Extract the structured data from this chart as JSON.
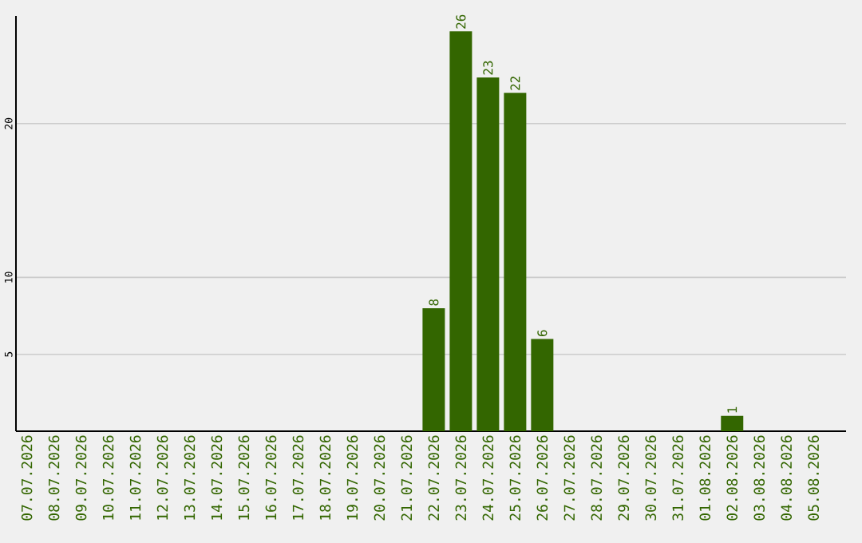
{
  "chart_data": {
    "type": "bar",
    "categories": [
      "07.07.2026",
      "08.07.2026",
      "09.07.2026",
      "10.07.2026",
      "11.07.2026",
      "12.07.2026",
      "13.07.2026",
      "14.07.2026",
      "15.07.2026",
      "16.07.2026",
      "17.07.2026",
      "18.07.2026",
      "19.07.2026",
      "20.07.2026",
      "21.07.2026",
      "22.07.2026",
      "23.07.2026",
      "24.07.2026",
      "25.07.2026",
      "26.07.2026",
      "27.07.2026",
      "28.07.2026",
      "29.07.2026",
      "30.07.2026",
      "31.07.2026",
      "01.08.2026",
      "02.08.2026",
      "03.08.2026",
      "04.08.2026",
      "05.08.2026"
    ],
    "values": [
      0,
      0,
      0,
      0,
      0,
      0,
      0,
      0,
      0,
      0,
      0,
      0,
      0,
      0,
      0,
      8,
      26,
      23,
      22,
      6,
      0,
      0,
      0,
      0,
      0,
      0,
      1,
      0,
      0,
      0
    ],
    "value_labels": [
      null,
      null,
      null,
      null,
      null,
      null,
      null,
      null,
      null,
      null,
      null,
      null,
      null,
      null,
      null,
      "8",
      "26",
      "23",
      "22",
      "6",
      null,
      null,
      null,
      null,
      null,
      null,
      "1",
      null,
      null,
      null
    ],
    "color": "#336600",
    "ylim": [
      0,
      27
    ],
    "yticks": [
      5,
      10,
      20
    ],
    "grid": "y"
  }
}
